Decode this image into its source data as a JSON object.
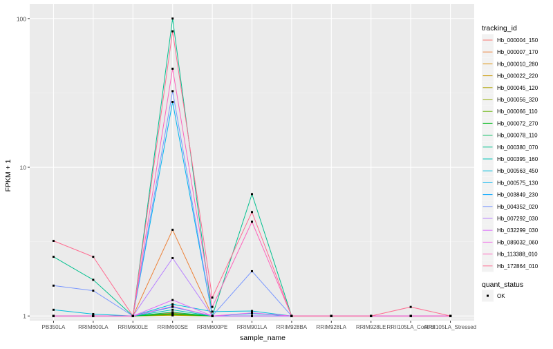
{
  "chart_data": {
    "type": "line",
    "title": "",
    "xlabel": "sample_name",
    "ylabel": "FPKM + 1",
    "y_scale": "log10",
    "ylim": [
      0.93,
      125
    ],
    "y_ticks": [
      1,
      10,
      100
    ],
    "y_tick_labels": [
      "1",
      "10",
      "100"
    ],
    "grid": true,
    "legend_position": "right",
    "categories": [
      "PB350LA",
      "RRIM600LA",
      "RRIM600LE",
      "RRIM600SE",
      "RRIM600PE",
      "RRIM901LA",
      "RRIM928BA",
      "RRIM928LA",
      "RRIM928LE",
      "RRII105LA_Control",
      "RRII105LA_Stressed"
    ],
    "legend_title": "tracking_id",
    "series": [
      {
        "name": "Hb_000004_150",
        "color": "#F8766D",
        "values": [
          1,
          1,
          1,
          1.05,
          1,
          1,
          1,
          1,
          1,
          1,
          1
        ]
      },
      {
        "name": "Hb_000007_170",
        "color": "#EC8239",
        "values": [
          1,
          1,
          1,
          3.8,
          1,
          1,
          1,
          1,
          1,
          1,
          1
        ]
      },
      {
        "name": "Hb_000010_280",
        "color": "#DB8E00",
        "values": [
          1,
          1,
          1,
          1.02,
          1,
          1,
          1,
          1,
          1,
          1,
          1
        ]
      },
      {
        "name": "Hb_000022_220",
        "color": "#C79800",
        "values": [
          1,
          1,
          1,
          1.03,
          1,
          1,
          1,
          1,
          1,
          1,
          1
        ]
      },
      {
        "name": "Hb_000045_120",
        "color": "#AEA200",
        "values": [
          1,
          1,
          1,
          1.01,
          1,
          1,
          1,
          1,
          1,
          1,
          1
        ]
      },
      {
        "name": "Hb_000056_320",
        "color": "#8FAA00",
        "values": [
          1,
          1,
          1,
          1.02,
          1,
          1,
          1,
          1,
          1,
          1,
          1
        ]
      },
      {
        "name": "Hb_000066_110",
        "color": "#64B200",
        "values": [
          1,
          1,
          1,
          1.04,
          1,
          1,
          1,
          1,
          1,
          1,
          1
        ]
      },
      {
        "name": "Hb_000072_270",
        "color": "#00B81B",
        "values": [
          1,
          1,
          1,
          1.03,
          1,
          1,
          1,
          1,
          1,
          1,
          1
        ]
      },
      {
        "name": "Hb_000078_110",
        "color": "#00BD5C",
        "values": [
          1,
          1,
          1,
          1.06,
          1,
          1,
          1,
          1,
          1,
          1,
          1
        ]
      },
      {
        "name": "Hb_000380_070",
        "color": "#00C08E",
        "values": [
          2.5,
          1.75,
          1,
          100,
          1,
          6.6,
          1,
          1,
          1,
          1,
          1
        ]
      },
      {
        "name": "Hb_000395_160",
        "color": "#00C1B7",
        "values": [
          1,
          1,
          1,
          1.1,
          1,
          1,
          1,
          1,
          1,
          1,
          1
        ]
      },
      {
        "name": "Hb_000563_450",
        "color": "#00BDDC",
        "values": [
          1.1,
          1.03,
          1,
          1.2,
          1.07,
          1.08,
          1,
          1,
          1,
          1,
          1
        ]
      },
      {
        "name": "Hb_000575_130",
        "color": "#00B4F0",
        "values": [
          1,
          1,
          1,
          27.5,
          1,
          1.04,
          1,
          1,
          1,
          1,
          1
        ]
      },
      {
        "name": "Hb_003849_230",
        "color": "#00A5FF",
        "values": [
          1,
          1,
          1,
          1.15,
          1,
          1,
          1,
          1,
          1,
          1,
          1
        ]
      },
      {
        "name": "Hb_004352_020",
        "color": "#7997FF",
        "values": [
          1.6,
          1.48,
          1,
          32.5,
          1,
          2.0,
          1,
          1,
          1,
          1,
          1
        ]
      },
      {
        "name": "Hb_007292_030",
        "color": "#B983FF",
        "values": [
          1,
          1,
          1,
          2.45,
          1,
          1,
          1,
          1,
          1,
          1,
          1
        ]
      },
      {
        "name": "Hb_032299_030",
        "color": "#DC71FA",
        "values": [
          1,
          1,
          1,
          1.28,
          1,
          1,
          1,
          1,
          1,
          1,
          1
        ]
      },
      {
        "name": "Hb_089032_060",
        "color": "#F166E8",
        "values": [
          1,
          1,
          1,
          1.16,
          1,
          1.05,
          1,
          1,
          1,
          1,
          1
        ]
      },
      {
        "name": "Hb_113388_010",
        "color": "#FF62BC",
        "values": [
          1,
          1,
          1,
          46,
          1.15,
          4.3,
          1,
          1,
          1,
          1,
          1
        ]
      },
      {
        "name": "Hb_172864_010",
        "color": "#FF6C91",
        "values": [
          3.2,
          2.5,
          1,
          82,
          1.33,
          5.0,
          1,
          1,
          1,
          1.15,
          1
        ]
      }
    ],
    "legend2_title": "quant_status",
    "legend2_entries": [
      "OK"
    ]
  }
}
